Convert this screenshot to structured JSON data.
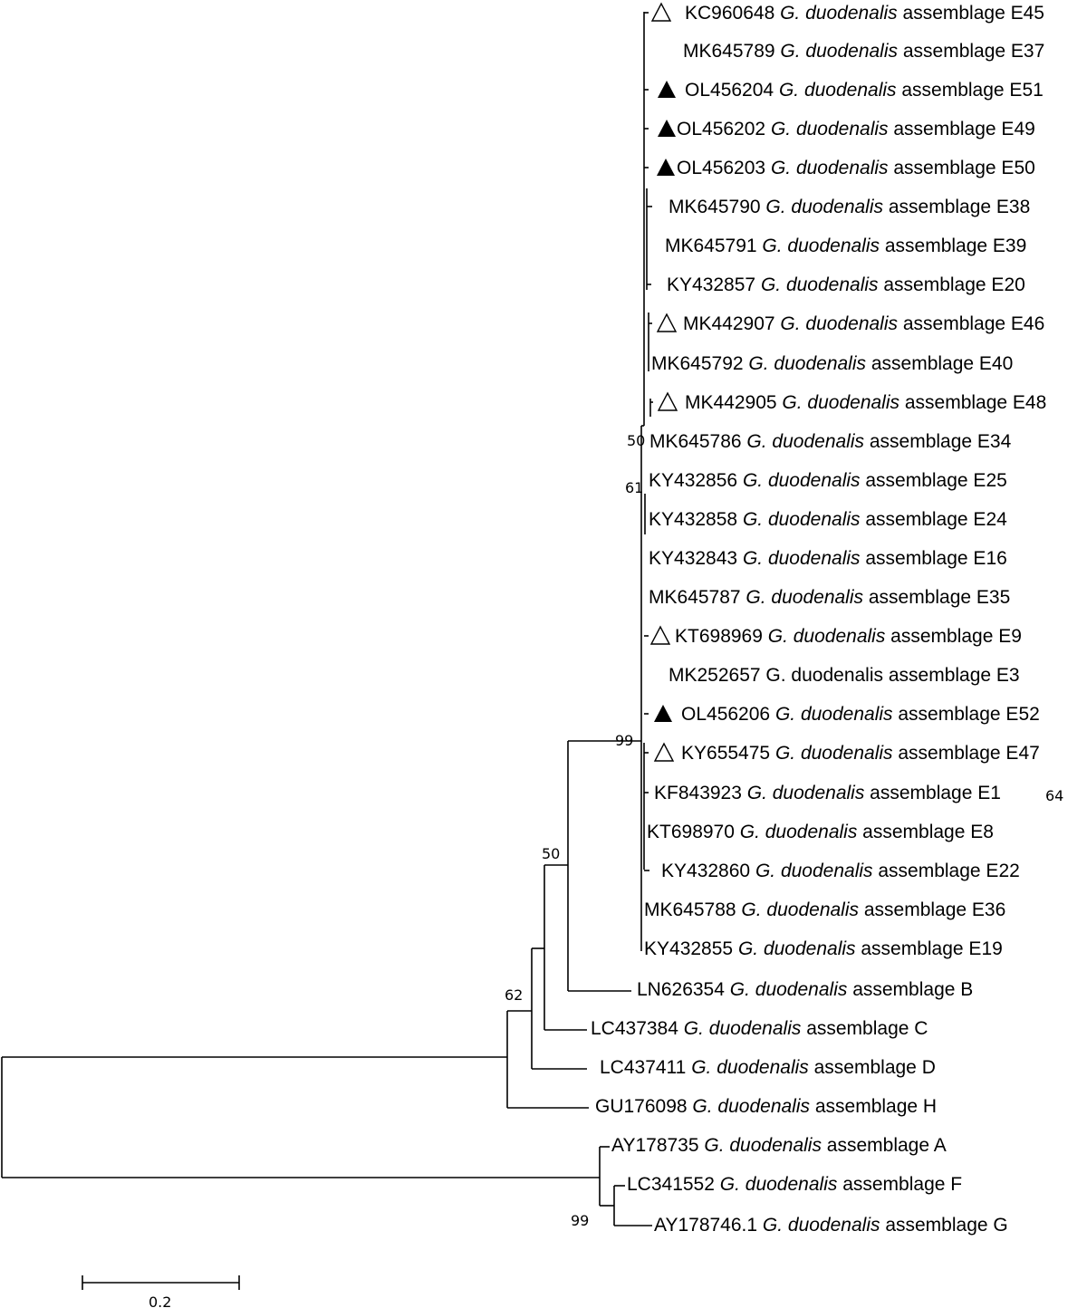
{
  "species_text": "G. duodenalis",
  "assemblage_word": "assemblage",
  "leaves": [
    {
      "acc": "KC960648",
      "asm": "E45",
      "marker": "open-triangle"
    },
    {
      "acc": "MK645789",
      "asm": "E37",
      "marker": "none"
    },
    {
      "acc": "OL456204",
      "asm": "E51",
      "marker": "filled-triangle"
    },
    {
      "acc": "OL456202",
      "asm": "E49",
      "marker": "filled-triangle"
    },
    {
      "acc": "OL456203",
      "asm": "E50",
      "marker": "filled-triangle"
    },
    {
      "acc": "MK645790",
      "asm": "E38",
      "marker": "none"
    },
    {
      "acc": "MK645791",
      "asm": "E39",
      "marker": "none"
    },
    {
      "acc": "KY432857",
      "asm": "E20",
      "marker": "none"
    },
    {
      "acc": "MK442907",
      "asm": "E46",
      "marker": "open-triangle"
    },
    {
      "acc": "MK645792",
      "asm": "E40",
      "marker": "none"
    },
    {
      "acc": "MK442905",
      "asm": "E48",
      "marker": "open-triangle"
    },
    {
      "acc": "MK645786",
      "asm": "E34",
      "marker": "none"
    },
    {
      "acc": "KY432856",
      "asm": "E25",
      "marker": "none"
    },
    {
      "acc": "KY432858",
      "asm": "E24",
      "marker": "none"
    },
    {
      "acc": "KY432843",
      "asm": "E16",
      "marker": "none"
    },
    {
      "acc": "MK645787",
      "asm": "E35",
      "marker": "none"
    },
    {
      "acc": "KT698969",
      "asm": "E9",
      "marker": "open-triangle"
    },
    {
      "acc": "MK252657",
      "asm": "E3",
      "marker": "none",
      "italic": false
    },
    {
      "acc": "OL456206",
      "asm": "E52",
      "marker": "filled-triangle"
    },
    {
      "acc": "KY655475",
      "asm": "E47",
      "marker": "open-triangle"
    },
    {
      "acc": "KF843923",
      "asm": "E1",
      "marker": "none"
    },
    {
      "acc": "KT698970",
      "asm": "E8",
      "marker": "none"
    },
    {
      "acc": "KY432860",
      "asm": "E22",
      "marker": "none"
    },
    {
      "acc": "MK645788",
      "asm": "E36",
      "marker": "none"
    },
    {
      "acc": "KY432855",
      "asm": "E19",
      "marker": "none"
    },
    {
      "acc": "LN626354",
      "asm": "B",
      "marker": "none"
    },
    {
      "acc": "LC437384",
      "asm": "C",
      "marker": "none"
    },
    {
      "acc": "LC437411",
      "asm": "D",
      "marker": "none"
    },
    {
      "acc": "GU176098",
      "asm": "H",
      "marker": "none"
    },
    {
      "acc": "AY178735",
      "asm": "A",
      "marker": "none"
    },
    {
      "acc": "LC341552",
      "asm": "F",
      "marker": "none"
    },
    {
      "acc": "AY178746.1",
      "asm": "G",
      "marker": "none"
    }
  ],
  "support_values": [
    "50",
    "61",
    "99",
    "64",
    "50",
    "62",
    "99"
  ],
  "scale_bar": {
    "label": "0.2"
  }
}
